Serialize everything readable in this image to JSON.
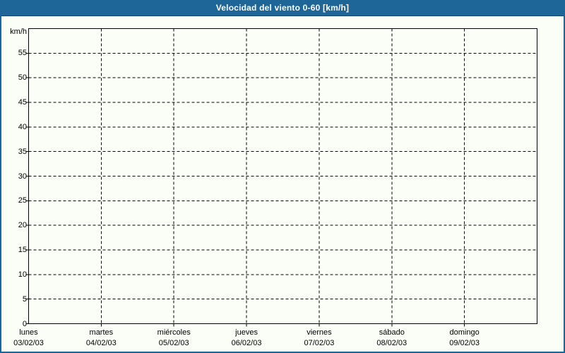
{
  "colors": {
    "accent": "#1F6698",
    "accent_dark": "#14496F",
    "background": "#FBFEF7",
    "grid": "#000000",
    "title_text": "#FFFFFF"
  },
  "chart_data": {
    "type": "line",
    "title": "Velocidad del viento 0-60 [km/h]",
    "ylabel": "km/h",
    "ylim": [
      0,
      60
    ],
    "ytick_step": 5,
    "ytick_labels": [
      "0",
      "5",
      "10",
      "15",
      "20",
      "25",
      "30",
      "35",
      "40",
      "45",
      "50",
      "55"
    ],
    "categories": [
      {
        "day": "lunes",
        "date": "03/02/03"
      },
      {
        "day": "martes",
        "date": "04/02/03"
      },
      {
        "day": "miércoles",
        "date": "05/02/03"
      },
      {
        "day": "jueves",
        "date": "06/02/03"
      },
      {
        "day": "viernes",
        "date": "07/02/03"
      },
      {
        "day": "sábado",
        "date": "08/02/03"
      },
      {
        "day": "domingo",
        "date": "09/02/03"
      }
    ],
    "series": [],
    "grid": "dashed",
    "legend": "none"
  }
}
